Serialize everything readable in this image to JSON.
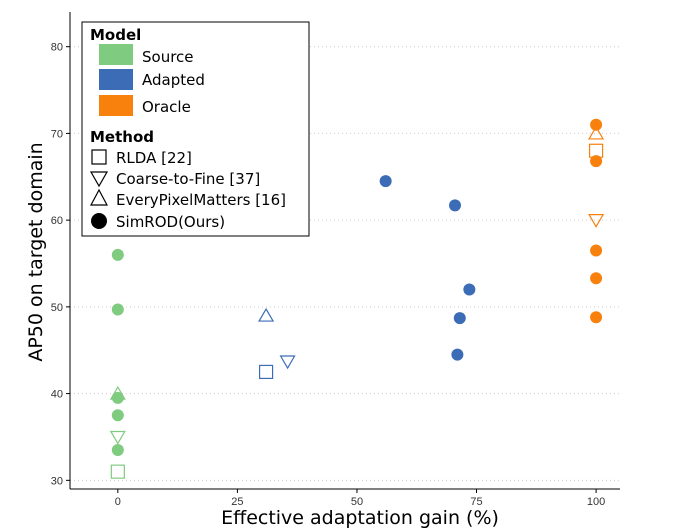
{
  "chart_data": {
    "type": "scatter",
    "title": "",
    "xlabel": "Effective adaptation gain (%)",
    "ylabel": "AP50 on target domain",
    "xlim": [
      -10,
      105
    ],
    "ylim": [
      29,
      84
    ],
    "xticks": [
      0,
      25,
      50,
      75,
      100
    ],
    "yticks": [
      30,
      40,
      50,
      60,
      70,
      80
    ],
    "grid": "horizontal dotted",
    "legend": {
      "placement": "top-left",
      "model_title": "Model",
      "method_title": "Method",
      "models": [
        {
          "name": "Source",
          "color": "#7fcb7f"
        },
        {
          "name": "Adapted",
          "color": "#3c6cb6"
        },
        {
          "name": "Oracle",
          "color": "#f7810c"
        }
      ],
      "methods": [
        {
          "name": "RLDA [22]",
          "shape": "square"
        },
        {
          "name": "Coarse-to-Fine [37]",
          "shape": "triangle-down"
        },
        {
          "name": "EveryPixelMatters [16]",
          "shape": "triangle-up"
        },
        {
          "name": "SimROD(Ours)",
          "shape": "circle"
        }
      ]
    },
    "points": [
      {
        "model": "Source",
        "method": "RLDA",
        "x": 0,
        "y": 31
      },
      {
        "model": "Source",
        "method": "Coarse-to-Fine",
        "x": 0,
        "y": 35
      },
      {
        "model": "Source",
        "method": "EveryPixelMatters",
        "x": 0,
        "y": 40
      },
      {
        "model": "Source",
        "method": "SimROD",
        "x": 0,
        "y": 33.5
      },
      {
        "model": "Source",
        "method": "SimROD",
        "x": 0,
        "y": 37.5
      },
      {
        "model": "Source",
        "method": "SimROD",
        "x": 0,
        "y": 39.5
      },
      {
        "model": "Source",
        "method": "SimROD",
        "x": 0,
        "y": 49.7
      },
      {
        "model": "Source",
        "method": "SimROD",
        "x": 0,
        "y": 56
      },
      {
        "model": "Adapted",
        "method": "RLDA",
        "x": 31,
        "y": 42.5
      },
      {
        "model": "Adapted",
        "method": "EveryPixelMatters",
        "x": 31,
        "y": 49
      },
      {
        "model": "Adapted",
        "method": "Coarse-to-Fine",
        "x": 35.5,
        "y": 43.7
      },
      {
        "model": "Adapted",
        "method": "SimROD",
        "x": 56,
        "y": 64.5
      },
      {
        "model": "Adapted",
        "method": "SimROD",
        "x": 70.5,
        "y": 61.7
      },
      {
        "model": "Adapted",
        "method": "SimROD",
        "x": 71,
        "y": 44.5
      },
      {
        "model": "Adapted",
        "method": "SimROD",
        "x": 71.5,
        "y": 48.7
      },
      {
        "model": "Adapted",
        "method": "SimROD",
        "x": 73.5,
        "y": 52
      },
      {
        "model": "Oracle",
        "method": "RLDA",
        "x": 100,
        "y": 68
      },
      {
        "model": "Oracle",
        "method": "EveryPixelMatters",
        "x": 100,
        "y": 70
      },
      {
        "model": "Oracle",
        "method": "Coarse-to-Fine",
        "x": 100,
        "y": 60
      },
      {
        "model": "Oracle",
        "method": "SimROD",
        "x": 100,
        "y": 71
      },
      {
        "model": "Oracle",
        "method": "SimROD",
        "x": 100,
        "y": 66.8
      },
      {
        "model": "Oracle",
        "method": "SimROD",
        "x": 100,
        "y": 56.5
      },
      {
        "model": "Oracle",
        "method": "SimROD",
        "x": 100,
        "y": 53.3
      },
      {
        "model": "Oracle",
        "method": "SimROD",
        "x": 100,
        "y": 48.8
      }
    ]
  }
}
